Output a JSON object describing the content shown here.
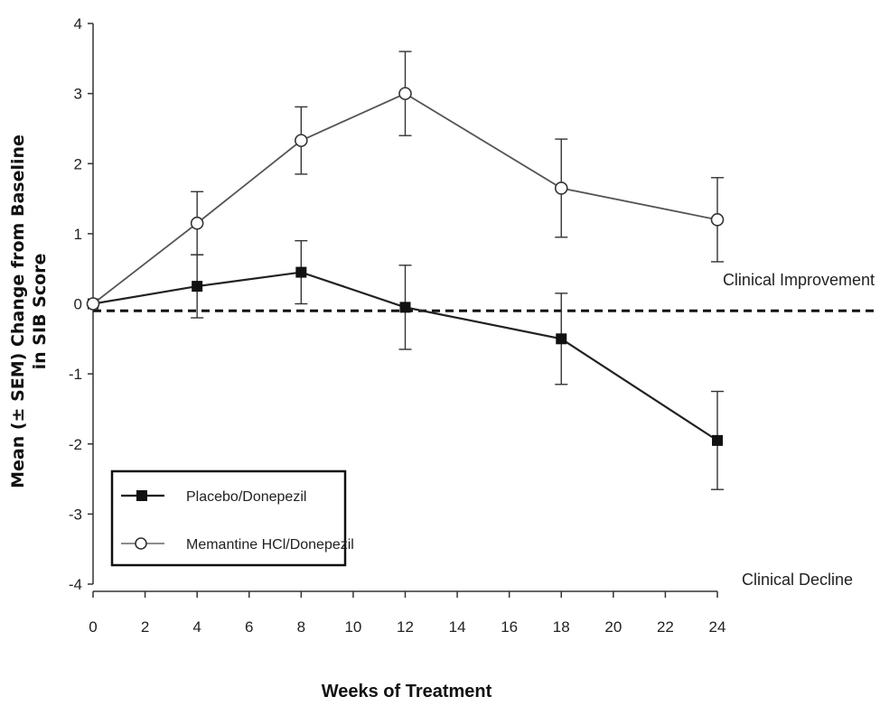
{
  "chart_data": {
    "type": "line",
    "title": "",
    "xlabel": "Weeks of Treatment",
    "ylabel_lines": [
      "Mean (± SEM) Change from Baseline",
      "in SIB Score"
    ],
    "xlim": [
      0,
      24
    ],
    "ylim": [
      -4,
      4
    ],
    "x_ticks": [
      "0",
      "2",
      "4",
      "6",
      "8",
      "10",
      "12",
      "14",
      "16",
      "18",
      "20",
      "22",
      "24"
    ],
    "y_ticks": [
      "-4",
      "-3",
      "-2",
      "-1",
      "0",
      "1",
      "2",
      "3",
      "4"
    ],
    "reference_line": {
      "y": -0.1,
      "style": "dashed"
    },
    "annotations": [
      "Clinical Improvement",
      "Clinical Decline"
    ],
    "grid": false,
    "legend_position": "bottom-left",
    "series": [
      {
        "name": "Placebo/Donepezil",
        "marker": "filled-square",
        "x": [
          0,
          4,
          8,
          12,
          18,
          24
        ],
        "y": [
          0.0,
          0.25,
          0.45,
          -0.05,
          -0.5,
          -1.95
        ],
        "sem": [
          0.0,
          0.45,
          0.45,
          0.6,
          0.65,
          0.7
        ]
      },
      {
        "name": "Memantine HCl/Donepezil",
        "marker": "open-circle",
        "x": [
          0,
          4,
          8,
          12,
          18,
          24
        ],
        "y": [
          0.0,
          1.15,
          2.33,
          3.0,
          1.65,
          1.2
        ],
        "sem": [
          0.0,
          0.45,
          0.48,
          0.6,
          0.7,
          0.6
        ]
      }
    ]
  }
}
